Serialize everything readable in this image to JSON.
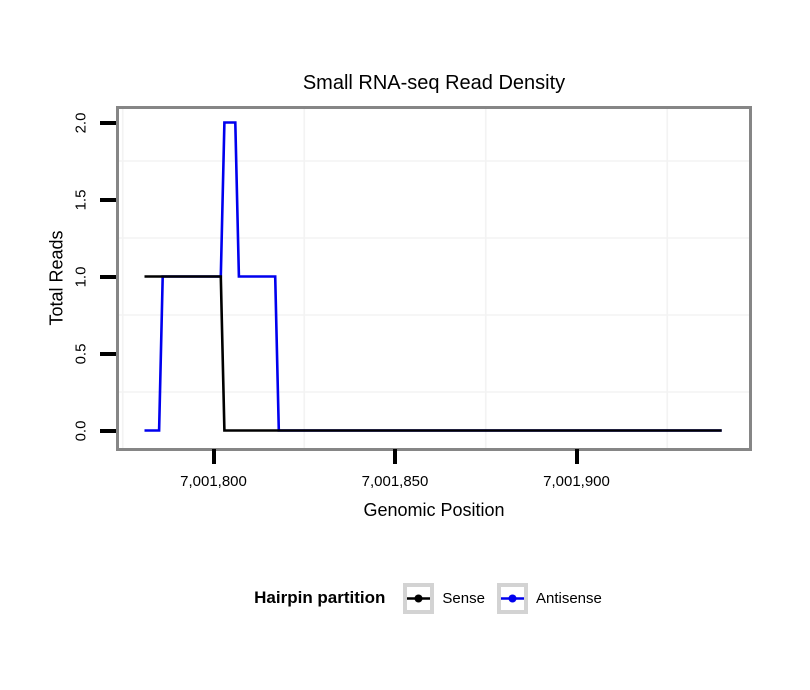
{
  "title": "Small RNA-seq Read Density",
  "axes": {
    "x": {
      "label": "Genomic Position",
      "ticks": [
        {
          "value": 7001800,
          "label": "7,001,800"
        },
        {
          "value": 7001850,
          "label": "7,001,850"
        },
        {
          "value": 7001900,
          "label": "7,001,900"
        }
      ]
    },
    "y": {
      "label": "Total Reads",
      "ticks": [
        {
          "value": 0.0,
          "label": "0.0"
        },
        {
          "value": 0.5,
          "label": "0.5"
        },
        {
          "value": 1.0,
          "label": "1.0"
        },
        {
          "value": 1.5,
          "label": "1.5"
        },
        {
          "value": 2.0,
          "label": "2.0"
        }
      ]
    }
  },
  "legend": {
    "title": "Hairpin partition",
    "items": [
      {
        "label": "Sense",
        "color": "#000000"
      },
      {
        "label": "Antisense",
        "color": "#0000ee"
      }
    ]
  },
  "colors": {
    "panel_border": "#868686",
    "minor_grid": "#f3f3f3",
    "tick": "#000000",
    "legend_key_border": "#d3d3d3"
  },
  "chart_data": {
    "type": "line",
    "title": "Small RNA-seq Read Density",
    "xlabel": "Genomic Position",
    "ylabel": "Total Reads",
    "xlim": [
      7001773,
      7001948
    ],
    "ylim": [
      0,
      2
    ],
    "x_tick_values": [
      7001800,
      7001850,
      7001900
    ],
    "y_tick_values": [
      0.0,
      0.5,
      1.0,
      1.5,
      2.0
    ],
    "grid": "minor-gridlines-only",
    "minor_grid_x": [
      7001775,
      7001825,
      7001875,
      7001925
    ],
    "minor_grid_y": [
      0.25,
      0.75,
      1.25,
      1.75
    ],
    "legend_position": "bottom",
    "legend_title": "Hairpin partition",
    "series": [
      {
        "name": "Antisense",
        "color": "#0000ee",
        "points": [
          [
            7001781,
            0
          ],
          [
            7001785,
            0
          ],
          [
            7001786,
            1
          ],
          [
            7001802,
            1
          ],
          [
            7001803,
            2
          ],
          [
            7001806,
            2
          ],
          [
            7001807,
            1
          ],
          [
            7001817,
            1
          ],
          [
            7001818,
            0
          ],
          [
            7001940,
            0
          ]
        ]
      },
      {
        "name": "Sense",
        "color": "#000000",
        "points": [
          [
            7001781,
            1
          ],
          [
            7001802,
            1
          ],
          [
            7001803,
            0
          ],
          [
            7001940,
            0
          ]
        ]
      }
    ]
  }
}
